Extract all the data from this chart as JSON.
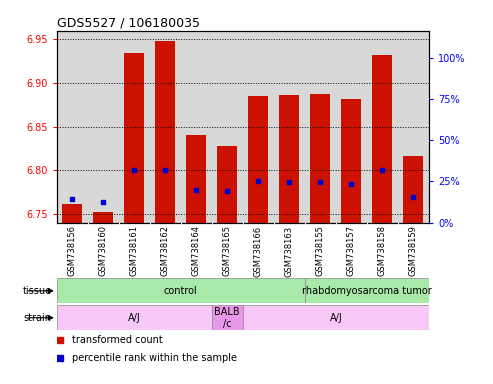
{
  "title": "GDS5527 / 106180035",
  "samples": [
    "GSM738156",
    "GSM738160",
    "GSM738161",
    "GSM738162",
    "GSM738164",
    "GSM738165",
    "GSM738166",
    "GSM738163",
    "GSM738155",
    "GSM738157",
    "GSM738158",
    "GSM738159"
  ],
  "red_values": [
    6.762,
    6.752,
    6.935,
    6.948,
    6.84,
    6.828,
    6.885,
    6.886,
    6.888,
    6.882,
    6.932,
    6.816
  ],
  "blue_values": [
    6.767,
    6.764,
    6.8,
    6.8,
    6.778,
    6.776,
    6.788,
    6.787,
    6.787,
    6.784,
    6.8,
    6.77
  ],
  "ylim_left": [
    6.74,
    6.96
  ],
  "yticks_left": [
    6.75,
    6.8,
    6.85,
    6.9,
    6.95
  ],
  "yticks_right_labels": [
    "0%",
    "25%",
    "50%",
    "75%",
    "100%"
  ],
  "yticks_right_vals": [
    0,
    25,
    50,
    75,
    100
  ],
  "tissue_labels": [
    [
      "control",
      0,
      8
    ],
    [
      "rhabdomyosarcoma tumor",
      8,
      12
    ]
  ],
  "strain_groups": [
    [
      "A/J",
      0,
      5
    ],
    [
      "BALB\n/c",
      5,
      6
    ],
    [
      "A/J",
      6,
      12
    ]
  ],
  "legend_red": "transformed count",
  "legend_blue": "percentile rank within the sample",
  "bar_color": "#cc1100",
  "blue_color": "#0000cc",
  "base": 6.74,
  "bar_width": 0.65,
  "tissue_green": "#a8e8a8",
  "strain_pink": "#f8c8f8",
  "strain_balb": "#e898e8",
  "col_gray": "#d8d8d8",
  "n_samples": 12
}
